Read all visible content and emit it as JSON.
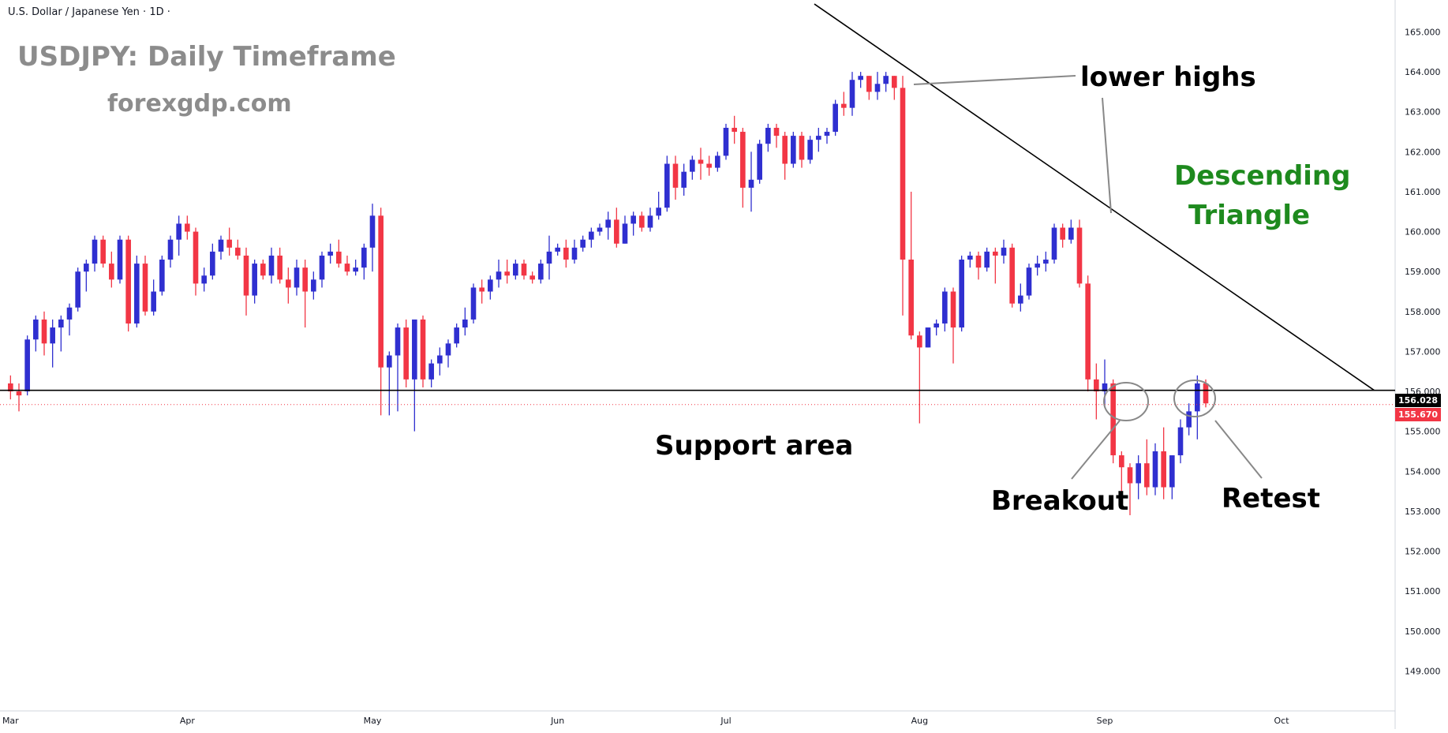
{
  "header": {
    "symbol": "U.S. Dollar / Japanese Yen · 1D ·"
  },
  "annotations": {
    "title": "USDJPY: Daily Timeframe",
    "site": "forexgdp.com",
    "lower_highs": "lower highs",
    "descending_line1": "Descending",
    "descending_line2": "Triangle",
    "support": "Support area",
    "breakout": "Breakout",
    "retest": "Retest"
  },
  "price_tags": {
    "support_level": "156.028",
    "last_price": "155.670"
  },
  "colors": {
    "up": "#2f2fd0",
    "down": "#f23645",
    "title_gray": "#8c8c8c",
    "pattern_green": "#1e8a1e"
  },
  "chart_data": {
    "type": "candlestick",
    "y_axis": {
      "min": 148.0,
      "max": 165.8,
      "ticks": [
        "149.000",
        "150.000",
        "151.000",
        "152.000",
        "153.000",
        "154.000",
        "155.000",
        "156.000",
        "157.000",
        "158.000",
        "159.000",
        "160.000",
        "161.000",
        "162.000",
        "163.000",
        "164.000",
        "165.000"
      ]
    },
    "x_axis": {
      "labels": [
        {
          "label": "Mar",
          "index": 0
        },
        {
          "label": "Apr",
          "index": 21
        },
        {
          "label": "May",
          "index": 43
        },
        {
          "label": "Jun",
          "index": 65
        },
        {
          "label": "Jul",
          "index": 85
        },
        {
          "label": "Aug",
          "index": 108
        },
        {
          "label": "Sep",
          "index": 130
        },
        {
          "label": "Oct",
          "index": 151
        }
      ],
      "total_slots": 165
    },
    "support_level": 156.028,
    "last_price": 155.67,
    "trendline": [
      {
        "index": 95.5,
        "price": 165.7
      },
      {
        "index": 162,
        "price": 156.03
      }
    ],
    "candles": [
      [
        156.2,
        156.4,
        155.8,
        156.0
      ],
      [
        156.0,
        156.2,
        155.5,
        155.9
      ],
      [
        156.0,
        157.4,
        155.9,
        157.3
      ],
      [
        157.3,
        157.9,
        157.0,
        157.8
      ],
      [
        157.8,
        158.0,
        156.9,
        157.2
      ],
      [
        157.2,
        157.8,
        156.6,
        157.6
      ],
      [
        157.6,
        157.9,
        157.0,
        157.8
      ],
      [
        157.8,
        158.2,
        157.4,
        158.1
      ],
      [
        158.1,
        159.1,
        158.0,
        159.0
      ],
      [
        159.0,
        159.3,
        158.5,
        159.2
      ],
      [
        159.2,
        159.9,
        159.0,
        159.8
      ],
      [
        159.8,
        159.9,
        159.1,
        159.2
      ],
      [
        159.2,
        159.5,
        158.6,
        158.8
      ],
      [
        158.8,
        159.9,
        158.7,
        159.8
      ],
      [
        159.8,
        159.9,
        157.5,
        157.7
      ],
      [
        157.7,
        159.4,
        157.6,
        159.2
      ],
      [
        159.2,
        159.4,
        157.9,
        158.0
      ],
      [
        158.0,
        158.8,
        157.9,
        158.5
      ],
      [
        158.5,
        159.4,
        158.4,
        159.3
      ],
      [
        159.3,
        159.9,
        159.1,
        159.8
      ],
      [
        159.8,
        160.4,
        159.4,
        160.2
      ],
      [
        160.2,
        160.4,
        159.8,
        160.0
      ],
      [
        160.0,
        160.1,
        158.4,
        158.7
      ],
      [
        158.7,
        159.1,
        158.5,
        158.9
      ],
      [
        158.9,
        159.7,
        158.8,
        159.5
      ],
      [
        159.5,
        159.9,
        159.3,
        159.8
      ],
      [
        159.8,
        160.1,
        159.4,
        159.6
      ],
      [
        159.6,
        159.8,
        159.3,
        159.4
      ],
      [
        159.4,
        159.6,
        157.9,
        158.4
      ],
      [
        158.4,
        159.3,
        158.2,
        159.2
      ],
      [
        159.2,
        159.3,
        158.8,
        158.9
      ],
      [
        158.9,
        159.6,
        158.7,
        159.4
      ],
      [
        159.4,
        159.6,
        158.7,
        158.8
      ],
      [
        158.8,
        159.1,
        158.2,
        158.6
      ],
      [
        158.6,
        159.3,
        158.4,
        159.1
      ],
      [
        159.1,
        159.3,
        157.6,
        158.5
      ],
      [
        158.5,
        159.0,
        158.3,
        158.8
      ],
      [
        158.8,
        159.5,
        158.6,
        159.4
      ],
      [
        159.4,
        159.7,
        159.2,
        159.5
      ],
      [
        159.5,
        159.8,
        159.1,
        159.2
      ],
      [
        159.2,
        159.4,
        158.9,
        159.0
      ],
      [
        159.0,
        159.3,
        158.9,
        159.1
      ],
      [
        159.1,
        159.7,
        158.8,
        159.6
      ],
      [
        159.6,
        160.7,
        159.0,
        160.4
      ],
      [
        160.4,
        160.6,
        155.4,
        156.6
      ],
      [
        156.6,
        157.0,
        155.4,
        156.9
      ],
      [
        156.9,
        157.7,
        155.5,
        157.6
      ],
      [
        157.6,
        157.8,
        156.1,
        156.3
      ],
      [
        156.3,
        157.8,
        155.0,
        157.8
      ],
      [
        157.8,
        157.9,
        156.1,
        156.3
      ],
      [
        156.3,
        156.8,
        156.1,
        156.7
      ],
      [
        156.7,
        157.1,
        156.4,
        156.9
      ],
      [
        156.9,
        157.3,
        156.6,
        157.2
      ],
      [
        157.2,
        157.7,
        157.1,
        157.6
      ],
      [
        157.6,
        158.1,
        157.4,
        157.8
      ],
      [
        157.8,
        158.7,
        157.7,
        158.6
      ],
      [
        158.6,
        158.8,
        158.2,
        158.5
      ],
      [
        158.5,
        158.9,
        158.3,
        158.8
      ],
      [
        158.8,
        159.3,
        158.6,
        159.0
      ],
      [
        159.0,
        159.3,
        158.7,
        158.9
      ],
      [
        158.9,
        159.3,
        158.8,
        159.2
      ],
      [
        159.2,
        159.3,
        158.8,
        158.9
      ],
      [
        158.9,
        159.0,
        158.7,
        158.8
      ],
      [
        158.8,
        159.3,
        158.7,
        159.2
      ],
      [
        159.2,
        159.9,
        158.8,
        159.5
      ],
      [
        159.5,
        159.7,
        159.4,
        159.6
      ],
      [
        159.6,
        159.8,
        159.1,
        159.3
      ],
      [
        159.3,
        159.8,
        159.2,
        159.6
      ],
      [
        159.6,
        159.9,
        159.5,
        159.8
      ],
      [
        159.8,
        160.1,
        159.6,
        160.0
      ],
      [
        160.0,
        160.2,
        159.9,
        160.1
      ],
      [
        160.1,
        160.5,
        159.8,
        160.3
      ],
      [
        160.3,
        160.6,
        159.6,
        159.7
      ],
      [
        159.7,
        160.4,
        159.7,
        160.2
      ],
      [
        160.2,
        160.5,
        159.9,
        160.4
      ],
      [
        160.4,
        160.5,
        160.0,
        160.1
      ],
      [
        160.1,
        160.6,
        160.0,
        160.4
      ],
      [
        160.4,
        161.0,
        160.3,
        160.6
      ],
      [
        160.6,
        161.9,
        160.5,
        161.7
      ],
      [
        161.7,
        161.9,
        160.8,
        161.1
      ],
      [
        161.1,
        161.7,
        160.9,
        161.5
      ],
      [
        161.5,
        161.9,
        161.3,
        161.8
      ],
      [
        161.8,
        162.1,
        161.3,
        161.7
      ],
      [
        161.7,
        161.9,
        161.4,
        161.6
      ],
      [
        161.6,
        162.0,
        161.5,
        161.9
      ],
      [
        161.9,
        162.7,
        161.8,
        162.6
      ],
      [
        162.6,
        162.9,
        162.2,
        162.5
      ],
      [
        162.5,
        162.6,
        160.6,
        161.1
      ],
      [
        161.1,
        162.0,
        160.5,
        161.3
      ],
      [
        161.3,
        162.3,
        161.2,
        162.2
      ],
      [
        162.2,
        162.7,
        162.0,
        162.6
      ],
      [
        162.6,
        162.7,
        162.1,
        162.4
      ],
      [
        162.4,
        162.5,
        161.3,
        161.7
      ],
      [
        161.7,
        162.5,
        161.6,
        162.4
      ],
      [
        162.4,
        162.5,
        161.6,
        161.8
      ],
      [
        161.8,
        162.4,
        161.7,
        162.3
      ],
      [
        162.3,
        162.6,
        162.0,
        162.4
      ],
      [
        162.4,
        162.6,
        162.2,
        162.5
      ],
      [
        162.5,
        163.3,
        162.4,
        163.2
      ],
      [
        163.2,
        163.5,
        162.9,
        163.1
      ],
      [
        163.1,
        164.0,
        162.9,
        163.8
      ],
      [
        163.8,
        164.0,
        163.6,
        163.9
      ],
      [
        163.9,
        163.9,
        163.3,
        163.5
      ],
      [
        163.5,
        164.0,
        163.3,
        163.7
      ],
      [
        163.7,
        164.0,
        163.5,
        163.9
      ],
      [
        163.9,
        163.9,
        163.3,
        163.6
      ],
      [
        163.6,
        163.9,
        157.9,
        159.3
      ],
      [
        159.3,
        161.0,
        157.3,
        157.4
      ],
      [
        157.4,
        157.5,
        155.2,
        157.1
      ],
      [
        157.1,
        157.6,
        157.1,
        157.6
      ],
      [
        157.6,
        157.8,
        157.4,
        157.7
      ],
      [
        157.7,
        158.6,
        157.5,
        158.5
      ],
      [
        158.5,
        158.6,
        156.7,
        157.6
      ],
      [
        157.6,
        159.4,
        157.5,
        159.3
      ],
      [
        159.3,
        159.5,
        159.1,
        159.4
      ],
      [
        159.4,
        159.5,
        158.8,
        159.1
      ],
      [
        159.1,
        159.6,
        159.0,
        159.5
      ],
      [
        159.5,
        159.6,
        158.7,
        159.4
      ],
      [
        159.4,
        159.8,
        159.2,
        159.6
      ],
      [
        159.6,
        159.7,
        158.1,
        158.2
      ],
      [
        158.2,
        158.7,
        158.0,
        158.4
      ],
      [
        158.4,
        159.2,
        158.3,
        159.1
      ],
      [
        159.1,
        159.4,
        158.9,
        159.2
      ],
      [
        159.2,
        159.5,
        159.0,
        159.3
      ],
      [
        159.3,
        160.2,
        159.2,
        160.1
      ],
      [
        160.1,
        160.2,
        159.6,
        159.8
      ],
      [
        159.8,
        160.3,
        159.7,
        160.1
      ],
      [
        160.1,
        160.3,
        158.6,
        158.7
      ],
      [
        158.7,
        158.9,
        156.0,
        156.3
      ],
      [
        156.3,
        156.7,
        155.3,
        156.0
      ],
      [
        156.0,
        156.8,
        155.6,
        156.2
      ],
      [
        156.2,
        156.3,
        154.2,
        154.4
      ],
      [
        154.4,
        154.5,
        153.4,
        154.1
      ],
      [
        154.1,
        154.2,
        152.9,
        153.7
      ],
      [
        153.7,
        154.4,
        153.3,
        154.2
      ],
      [
        154.2,
        154.8,
        153.4,
        153.6
      ],
      [
        153.6,
        154.7,
        153.4,
        154.5
      ],
      [
        154.5,
        155.1,
        153.3,
        153.6
      ],
      [
        153.6,
        154.4,
        153.3,
        154.4
      ],
      [
        154.4,
        155.3,
        154.2,
        155.1
      ],
      [
        155.1,
        155.7,
        154.9,
        155.5
      ],
      [
        155.5,
        156.4,
        154.8,
        156.2
      ],
      [
        156.2,
        156.3,
        155.6,
        155.7
      ]
    ]
  }
}
